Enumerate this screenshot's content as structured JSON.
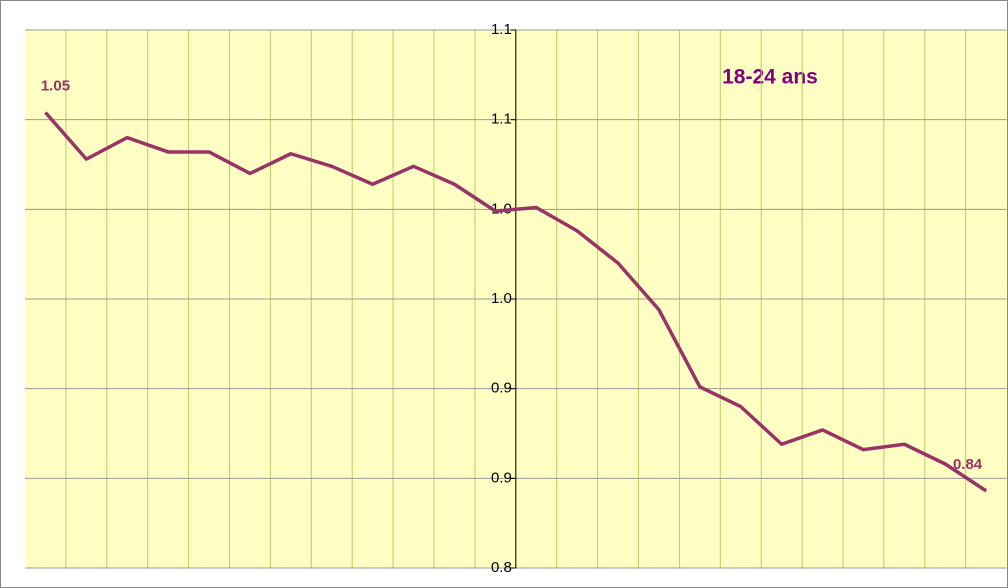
{
  "chart_data": {
    "type": "line",
    "title": "18-24 ans",
    "categories": [
      null,
      null,
      null,
      null,
      null,
      null,
      null,
      null,
      null,
      null,
      null,
      null,
      null,
      null,
      null,
      null,
      null,
      null,
      null,
      null,
      null,
      null,
      null,
      null
    ],
    "series": [
      {
        "name": null,
        "color": "#993366",
        "values": [
          1.054,
          1.028,
          1.04,
          1.032,
          1.032,
          1.02,
          1.031,
          1.024,
          1.014,
          1.024,
          1.014,
          0.999,
          1.001,
          0.988,
          0.97,
          0.944,
          0.901,
          0.89,
          0.869,
          0.877,
          0.866,
          0.869,
          0.858,
          0.843
        ],
        "value_labels": [
          "1.05",
          null,
          null,
          null,
          null,
          null,
          null,
          null,
          null,
          null,
          null,
          null,
          null,
          null,
          null,
          null,
          null,
          null,
          null,
          null,
          null,
          null,
          null,
          "0.84"
        ]
      }
    ],
    "ylim": [
      0.8,
      1.1
    ],
    "yticks": [
      0.8,
      {
        "value": 0.85,
        "label": "0.9"
      },
      0.9,
      {
        "value": 0.95,
        "label": "1.0"
      },
      {
        "value": 1.0,
        "label": "1.0"
      },
      {
        "value": 1.05,
        "label": "1.1"
      },
      1.1
    ],
    "grid": true
  }
}
